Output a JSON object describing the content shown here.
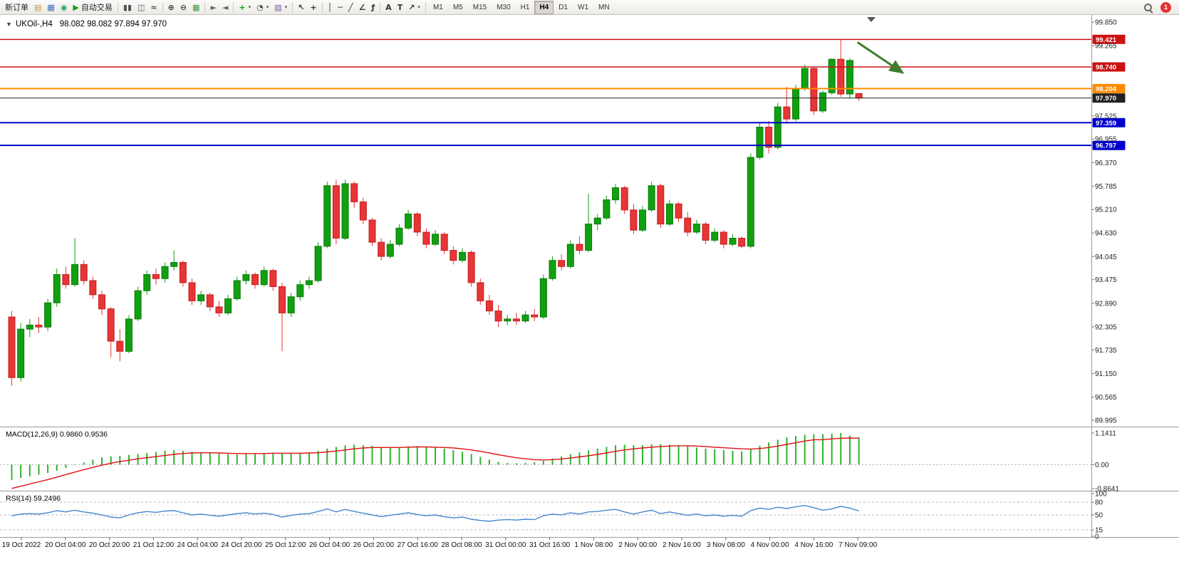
{
  "toolbar": {
    "notification_count": "1",
    "timeframes": [
      "M1",
      "M5",
      "M15",
      "M30",
      "H1",
      "H4",
      "D1",
      "W1",
      "MN"
    ],
    "active_timeframe": "H4",
    "buttons": [
      {
        "name": "new-order-button",
        "label": "新订单"
      },
      {
        "name": "market-watch-button",
        "glyph": "▤",
        "color": "#c79a3b",
        "icon": "market-watch-icon"
      },
      {
        "name": "data-window-button",
        "glyph": "▦",
        "color": "#3a6bc4",
        "icon": "data-window-icon"
      },
      {
        "name": "navigator-button",
        "glyph": "◉",
        "color": "#2f9e63",
        "icon": "navigator-icon"
      },
      {
        "name": "autotrading-button",
        "glyph": "▶",
        "color": "#18a018",
        "label": "自动交易",
        "icon": "autotrading-play-icon"
      },
      {
        "sep": true
      },
      {
        "name": "bar-chart-button",
        "glyph": "▮▮",
        "color": "#555555",
        "icon": "bar-chart-icon"
      },
      {
        "name": "candlestick-chart-button",
        "glyph": "◫",
        "color": "#555555",
        "icon": "candlestick-icon"
      },
      {
        "name": "line-chart-button",
        "glyph": "≈",
        "color": "#555555",
        "icon": "line-chart-icon"
      },
      {
        "sep": true
      },
      {
        "name": "zoom-in-button",
        "glyph": "⊕",
        "color": "#444444",
        "icon": "zoom-in-icon"
      },
      {
        "name": "zoom-out-button",
        "glyph": "⊖",
        "color": "#444444",
        "icon": "zoom-out-icon"
      },
      {
        "name": "tile-windows-button",
        "glyph": "▦",
        "color": "#2f9e2f",
        "icon": "tile-windows-icon"
      },
      {
        "sep": true
      },
      {
        "name": "auto-scroll-button",
        "glyph": "►",
        "color": "#666666",
        "icon": "auto-scroll-icon"
      },
      {
        "name": "chart-shift-button",
        "glyph": "◄",
        "color": "#666666",
        "icon": "chart-shift-icon"
      },
      {
        "sep": true
      },
      {
        "name": "indicators-button",
        "glyph": "+",
        "color": "#18a018",
        "dropdown": true,
        "icon": "add-indicator-icon"
      },
      {
        "name": "periods-button",
        "glyph": "◔",
        "color": "#444444",
        "dropdown": true,
        "icon": "clock-icon"
      },
      {
        "name": "templates-button",
        "glyph": "▨",
        "color": "#7a5ca8",
        "dropdown": true,
        "icon": "template-icon"
      },
      {
        "sep": true
      },
      {
        "name": "cursor-button",
        "glyph": "↖",
        "color": "#333333",
        "icon": "cursor-icon"
      },
      {
        "name": "crosshair-button",
        "glyph": "+",
        "color": "#333333",
        "icon": "crosshair-icon"
      },
      {
        "sep": true
      },
      {
        "name": "vertical-line-button",
        "glyph": "│",
        "color": "#333333",
        "icon": "vertical-line-icon"
      },
      {
        "name": "horizontal-line-button",
        "glyph": "─",
        "color": "#333333",
        "icon": "horizontal-line-icon"
      },
      {
        "name": "trendline-button",
        "glyph": "╱",
        "color": "#333333",
        "icon": "trendline-icon"
      },
      {
        "name": "channel-button",
        "glyph": "∠",
        "color": "#333333",
        "icon": "channel-icon"
      },
      {
        "name": "fibonacci-button",
        "glyph": "ƒ",
        "color": "#333333",
        "icon": "fibonacci-icon"
      },
      {
        "sep": true
      },
      {
        "name": "text-button",
        "glyph": "A",
        "color": "#333333",
        "icon": "text-icon"
      },
      {
        "name": "text-label-button",
        "glyph": "T",
        "color": "#333333",
        "icon": "label-icon"
      },
      {
        "name": "arrows-button",
        "glyph": "↗",
        "color": "#333333",
        "dropdown": true,
        "icon": "arrow-object-icon"
      },
      {
        "sep": true
      },
      {
        "timeframes": true
      }
    ]
  },
  "chart_header": {
    "symbol": "UKOil-,H4",
    "ohlc": "98.082 98.082 97.894 97.970",
    "open": "98.082",
    "high": "98.082",
    "low": "97.894",
    "close": "97.970"
  },
  "chart": {
    "one_click_glyph": "▼"
  },
  "price_axis": {
    "labels": [
      "99.850",
      "99.265",
      "97.525",
      "96.955",
      "96.370",
      "95.785",
      "95.210",
      "94.630",
      "94.045",
      "93.475",
      "92.890",
      "92.305",
      "91.735",
      "91.150",
      "90.565",
      "89.995"
    ]
  },
  "time_axis": [
    "19 Oct 2022",
    "20 Oct 04:00",
    "20 Oct 20:00",
    "21 Oct 12:00",
    "24 Oct 04:00",
    "24 Oct 20:00",
    "25 Oct 12:00",
    "26 Oct 04:00",
    "26 Oct 20:00",
    "27 Oct 16:00",
    "28 Oct 08:00",
    "31 Oct 00:00",
    "31 Oct 16:00",
    "1 Nov 08:00",
    "2 Nov 00:00",
    "2 Nov 16:00",
    "3 Nov 08:00",
    "4 Nov 00:00",
    "4 Nov 16:00",
    "7 Nov 09:00"
  ],
  "indicators": {
    "macd": {
      "label": "MACD(12,26,9) 0.9860 0.9536",
      "axis": [
        "1.1411",
        "0.00",
        "-0.8641"
      ]
    },
    "rsi": {
      "label": "RSI(14) 59.2496",
      "axis": [
        "100",
        "80",
        "50",
        "15",
        "0"
      ]
    }
  },
  "chart_data": [
    {
      "type": "candlestick",
      "title": "UKOil-,H4",
      "timeframe": "H4",
      "ylim": [
        89.995,
        99.85
      ],
      "up_color": "#10a010",
      "up_border": "#0b7a0b",
      "down_color": "#e83535",
      "down_border": "#c02020",
      "ohlc": [
        [
          92.55,
          92.7,
          90.85,
          91.05
        ],
        [
          91.05,
          92.4,
          90.95,
          92.25
        ],
        [
          92.25,
          92.5,
          92.05,
          92.35
        ],
        [
          92.35,
          92.55,
          92.15,
          92.3
        ],
        [
          92.3,
          93.0,
          92.2,
          92.9
        ],
        [
          92.9,
          93.75,
          92.8,
          93.6
        ],
        [
          93.6,
          93.8,
          93.25,
          93.35
        ],
        [
          93.35,
          94.5,
          93.3,
          93.85
        ],
        [
          93.85,
          93.95,
          93.35,
          93.45
        ],
        [
          93.45,
          93.55,
          93.0,
          93.1
        ],
        [
          93.1,
          93.2,
          92.6,
          92.75
        ],
        [
          92.75,
          92.8,
          91.55,
          91.95
        ],
        [
          91.95,
          92.25,
          91.45,
          91.7
        ],
        [
          91.7,
          92.6,
          91.65,
          92.5
        ],
        [
          92.5,
          93.3,
          92.45,
          93.2
        ],
        [
          93.2,
          93.7,
          93.1,
          93.6
        ],
        [
          93.6,
          93.75,
          93.35,
          93.5
        ],
        [
          93.5,
          93.9,
          93.4,
          93.8
        ],
        [
          93.8,
          94.2,
          93.7,
          93.9
        ],
        [
          93.9,
          93.95,
          93.3,
          93.4
        ],
        [
          93.4,
          93.5,
          92.85,
          92.95
        ],
        [
          92.95,
          93.2,
          92.85,
          93.1
        ],
        [
          93.1,
          93.15,
          92.7,
          92.8
        ],
        [
          92.8,
          92.95,
          92.55,
          92.65
        ],
        [
          92.65,
          93.1,
          92.6,
          93.0
        ],
        [
          93.0,
          93.55,
          92.95,
          93.45
        ],
        [
          93.45,
          93.7,
          93.35,
          93.6
        ],
        [
          93.6,
          93.65,
          93.25,
          93.35
        ],
        [
          93.35,
          93.8,
          93.3,
          93.7
        ],
        [
          93.7,
          93.75,
          93.2,
          93.3
        ],
        [
          93.3,
          93.4,
          91.7,
          92.65
        ],
        [
          92.65,
          93.15,
          92.55,
          93.05
        ],
        [
          93.05,
          93.45,
          92.95,
          93.35
        ],
        [
          93.35,
          93.55,
          93.25,
          93.45
        ],
        [
          93.45,
          94.4,
          93.4,
          94.3
        ],
        [
          94.3,
          95.9,
          94.25,
          95.8
        ],
        [
          95.8,
          95.95,
          94.35,
          94.5
        ],
        [
          94.5,
          95.95,
          94.45,
          95.85
        ],
        [
          95.85,
          95.9,
          95.25,
          95.4
        ],
        [
          95.4,
          95.5,
          94.85,
          94.95
        ],
        [
          94.95,
          95.0,
          94.3,
          94.4
        ],
        [
          94.4,
          94.5,
          93.95,
          94.05
        ],
        [
          94.05,
          94.45,
          94.0,
          94.35
        ],
        [
          94.35,
          94.85,
          94.3,
          94.75
        ],
        [
          94.75,
          95.2,
          94.7,
          95.1
        ],
        [
          95.1,
          95.15,
          94.55,
          94.65
        ],
        [
          94.65,
          94.75,
          94.25,
          94.35
        ],
        [
          94.35,
          94.7,
          94.3,
          94.6
        ],
        [
          94.6,
          94.65,
          94.1,
          94.2
        ],
        [
          94.2,
          94.3,
          93.85,
          93.95
        ],
        [
          93.95,
          94.25,
          93.9,
          94.15
        ],
        [
          94.15,
          94.2,
          93.3,
          93.4
        ],
        [
          93.4,
          93.5,
          92.85,
          92.95
        ],
        [
          92.95,
          93.1,
          92.6,
          92.7
        ],
        [
          92.7,
          92.85,
          92.3,
          92.45
        ],
        [
          92.45,
          92.6,
          92.35,
          92.5
        ],
        [
          92.5,
          92.65,
          92.35,
          92.45
        ],
        [
          92.45,
          92.7,
          92.4,
          92.6
        ],
        [
          92.6,
          92.75,
          92.45,
          92.55
        ],
        [
          92.55,
          93.6,
          92.5,
          93.5
        ],
        [
          93.5,
          94.05,
          93.45,
          93.95
        ],
        [
          93.95,
          94.1,
          93.7,
          93.8
        ],
        [
          93.8,
          94.45,
          93.75,
          94.35
        ],
        [
          94.35,
          94.55,
          94.1,
          94.2
        ],
        [
          94.2,
          95.6,
          94.15,
          94.85
        ],
        [
          94.85,
          95.1,
          94.7,
          95.0
        ],
        [
          95.0,
          95.55,
          94.95,
          95.45
        ],
        [
          95.45,
          95.85,
          95.35,
          95.75
        ],
        [
          95.75,
          95.8,
          95.1,
          95.2
        ],
        [
          95.2,
          95.35,
          94.6,
          94.7
        ],
        [
          94.7,
          95.3,
          94.65,
          95.2
        ],
        [
          95.2,
          95.9,
          95.15,
          95.8
        ],
        [
          95.8,
          95.85,
          94.75,
          94.85
        ],
        [
          94.85,
          95.45,
          94.8,
          95.35
        ],
        [
          95.35,
          95.4,
          94.9,
          95.0
        ],
        [
          95.0,
          95.15,
          94.55,
          94.65
        ],
        [
          94.65,
          94.95,
          94.6,
          94.85
        ],
        [
          94.85,
          94.9,
          94.35,
          94.45
        ],
        [
          94.45,
          94.75,
          94.4,
          94.65
        ],
        [
          94.65,
          94.7,
          94.25,
          94.35
        ],
        [
          94.35,
          94.6,
          94.3,
          94.5
        ],
        [
          94.5,
          94.55,
          94.25,
          94.3
        ],
        [
          94.3,
          96.6,
          94.25,
          96.5
        ],
        [
          96.5,
          97.35,
          96.45,
          97.25
        ],
        [
          97.25,
          97.4,
          96.6,
          96.75
        ],
        [
          96.75,
          97.85,
          96.7,
          97.75
        ],
        [
          97.75,
          98.25,
          97.35,
          97.45
        ],
        [
          97.45,
          98.3,
          97.4,
          98.2
        ],
        [
          98.2,
          98.8,
          98.15,
          98.7
        ],
        [
          98.7,
          98.75,
          97.55,
          97.65
        ],
        [
          97.65,
          98.15,
          97.6,
          98.1
        ],
        [
          98.1,
          98.95,
          98.05,
          98.93
        ],
        [
          98.93,
          99.42,
          98.0,
          98.07
        ],
        [
          98.07,
          98.95,
          97.95,
          98.9
        ],
        [
          98.082,
          98.082,
          97.894,
          97.97
        ]
      ],
      "hlines": [
        {
          "label": "99.421",
          "price": 99.421,
          "color": "#cc1111",
          "width": 1.5
        },
        {
          "label": "98.740",
          "price": 98.74,
          "color": "#cc1111",
          "width": 1.5
        },
        {
          "label": "98.204",
          "price": 98.204,
          "color": "#ff8a00",
          "width": 2
        },
        {
          "label": "97.970",
          "price": 97.97,
          "color": "#222222",
          "width": 1,
          "style": "current"
        },
        {
          "label": "97.359",
          "price": 97.359,
          "color": "#0000cc",
          "width": 2
        },
        {
          "label": "96.797",
          "price": 96.797,
          "color": "#0000cc",
          "width": 2
        }
      ],
      "annotation": {
        "type": "arrow",
        "color": "#3f7d2f",
        "from": {
          "bar": 94.2,
          "price": 99.35
        },
        "to": {
          "bar": 99.2,
          "price": 98.6
        }
      }
    },
    {
      "type": "bar",
      "name": "MACD(12,26,9)",
      "ylim": [
        -0.8641,
        1.1411
      ],
      "bar_color": "#2db32d",
      "signal_color": "#e01010",
      "current": {
        "main": 0.986,
        "signal": 0.9536
      },
      "values": [
        -0.55,
        -0.48,
        -0.42,
        -0.36,
        -0.3,
        -0.22,
        -0.12,
        -0.02,
        0.08,
        0.18,
        0.26,
        0.3,
        0.32,
        0.35,
        0.38,
        0.42,
        0.46,
        0.5,
        0.52,
        0.5,
        0.46,
        0.44,
        0.42,
        0.4,
        0.38,
        0.37,
        0.38,
        0.4,
        0.42,
        0.43,
        0.42,
        0.4,
        0.42,
        0.44,
        0.5,
        0.58,
        0.64,
        0.7,
        0.72,
        0.7,
        0.68,
        0.64,
        0.62,
        0.63,
        0.66,
        0.67,
        0.64,
        0.62,
        0.58,
        0.52,
        0.46,
        0.38,
        0.28,
        0.18,
        0.1,
        0.06,
        0.05,
        0.06,
        0.08,
        0.14,
        0.22,
        0.3,
        0.38,
        0.44,
        0.52,
        0.58,
        0.64,
        0.7,
        0.72,
        0.7,
        0.7,
        0.74,
        0.74,
        0.72,
        0.7,
        0.66,
        0.62,
        0.58,
        0.55,
        0.52,
        0.5,
        0.48,
        0.55,
        0.68,
        0.8,
        0.9,
        0.98,
        1.04,
        1.08,
        1.1,
        1.1,
        1.12,
        1.1411,
        1.05,
        0.986
      ],
      "signal": [
        -0.86,
        -0.78,
        -0.7,
        -0.62,
        -0.54,
        -0.45,
        -0.36,
        -0.27,
        -0.18,
        -0.1,
        -0.02,
        0.05,
        0.11,
        0.16,
        0.21,
        0.25,
        0.29,
        0.33,
        0.37,
        0.4,
        0.42,
        0.43,
        0.43,
        0.42,
        0.41,
        0.4,
        0.4,
        0.4,
        0.4,
        0.41,
        0.41,
        0.41,
        0.41,
        0.42,
        0.43,
        0.46,
        0.49,
        0.53,
        0.57,
        0.6,
        0.62,
        0.62,
        0.62,
        0.62,
        0.63,
        0.64,
        0.64,
        0.63,
        0.62,
        0.6,
        0.57,
        0.53,
        0.48,
        0.42,
        0.36,
        0.3,
        0.25,
        0.21,
        0.18,
        0.17,
        0.18,
        0.2,
        0.24,
        0.28,
        0.32,
        0.37,
        0.42,
        0.48,
        0.53,
        0.57,
        0.6,
        0.63,
        0.65,
        0.67,
        0.68,
        0.68,
        0.67,
        0.65,
        0.63,
        0.61,
        0.59,
        0.57,
        0.56,
        0.58,
        0.62,
        0.67,
        0.73,
        0.79,
        0.85,
        0.9,
        0.9,
        0.93,
        0.95,
        0.96,
        0.9536
      ]
    },
    {
      "type": "line",
      "name": "RSI(14)",
      "ylim": [
        0,
        100
      ],
      "levels": [
        80,
        50,
        15
      ],
      "line_color": "#4488cc",
      "current": 59.2496,
      "values": [
        48,
        52,
        53,
        52,
        55,
        60,
        57,
        61,
        57,
        54,
        50,
        45,
        43,
        50,
        55,
        58,
        56,
        59,
        60,
        55,
        50,
        52,
        49,
        47,
        50,
        53,
        55,
        52,
        54,
        51,
        45,
        49,
        52,
        53,
        58,
        64,
        57,
        63,
        58,
        54,
        50,
        46,
        49,
        52,
        55,
        51,
        48,
        50,
        46,
        43,
        45,
        40,
        37,
        35,
        38,
        39,
        38,
        40,
        39,
        48,
        52,
        50,
        55,
        52,
        57,
        58,
        61,
        63,
        57,
        52,
        57,
        61,
        53,
        57,
        53,
        49,
        52,
        48,
        50,
        47,
        49,
        47,
        60,
        66,
        63,
        68,
        65,
        69,
        72,
        67,
        61,
        64,
        70,
        66,
        59.25
      ]
    }
  ]
}
